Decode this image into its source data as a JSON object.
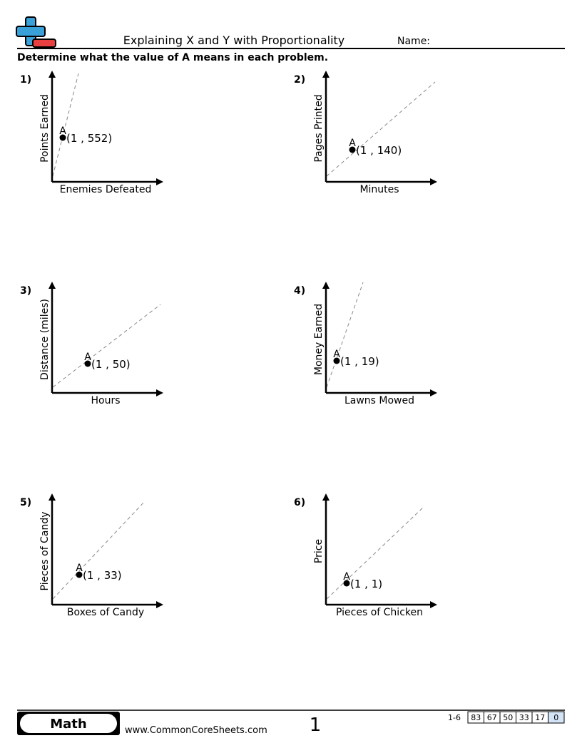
{
  "header": {
    "title": "Explaining X and Y with Proportionality",
    "name_label": "Name:"
  },
  "instruction": "Determine what the value of A means in each problem.",
  "problems": [
    {
      "number": "1)",
      "y_label": "Points Earned",
      "x_label": "Enemies Defeated",
      "point_label": "A",
      "coordinate": "(1 , 552)"
    },
    {
      "number": "2)",
      "y_label": "Pages Printed",
      "x_label": "Minutes",
      "point_label": "A",
      "coordinate": "(1 , 140)"
    },
    {
      "number": "3)",
      "y_label": "Distance (miles)",
      "x_label": "Hours",
      "point_label": "A",
      "coordinate": "(1 , 50)"
    },
    {
      "number": "4)",
      "y_label": "Money Earned",
      "x_label": "Lawns Mowed",
      "point_label": "A",
      "coordinate": "(1 , 19)"
    },
    {
      "number": "5)",
      "y_label": "Pieces of Candy",
      "x_label": "Boxes of Candy",
      "point_label": "A",
      "coordinate": "(1 , 33)"
    },
    {
      "number": "6)",
      "y_label": "Price",
      "x_label": "Pieces of Chicken",
      "point_label": "A",
      "coordinate": "(1 , 1)"
    }
  ],
  "footer": {
    "subject": "Math",
    "website": "www.CommonCoreSheets.com",
    "page": "1",
    "range": "1-6",
    "scores": [
      "83",
      "67",
      "50",
      "33",
      "17",
      "0"
    ]
  }
}
